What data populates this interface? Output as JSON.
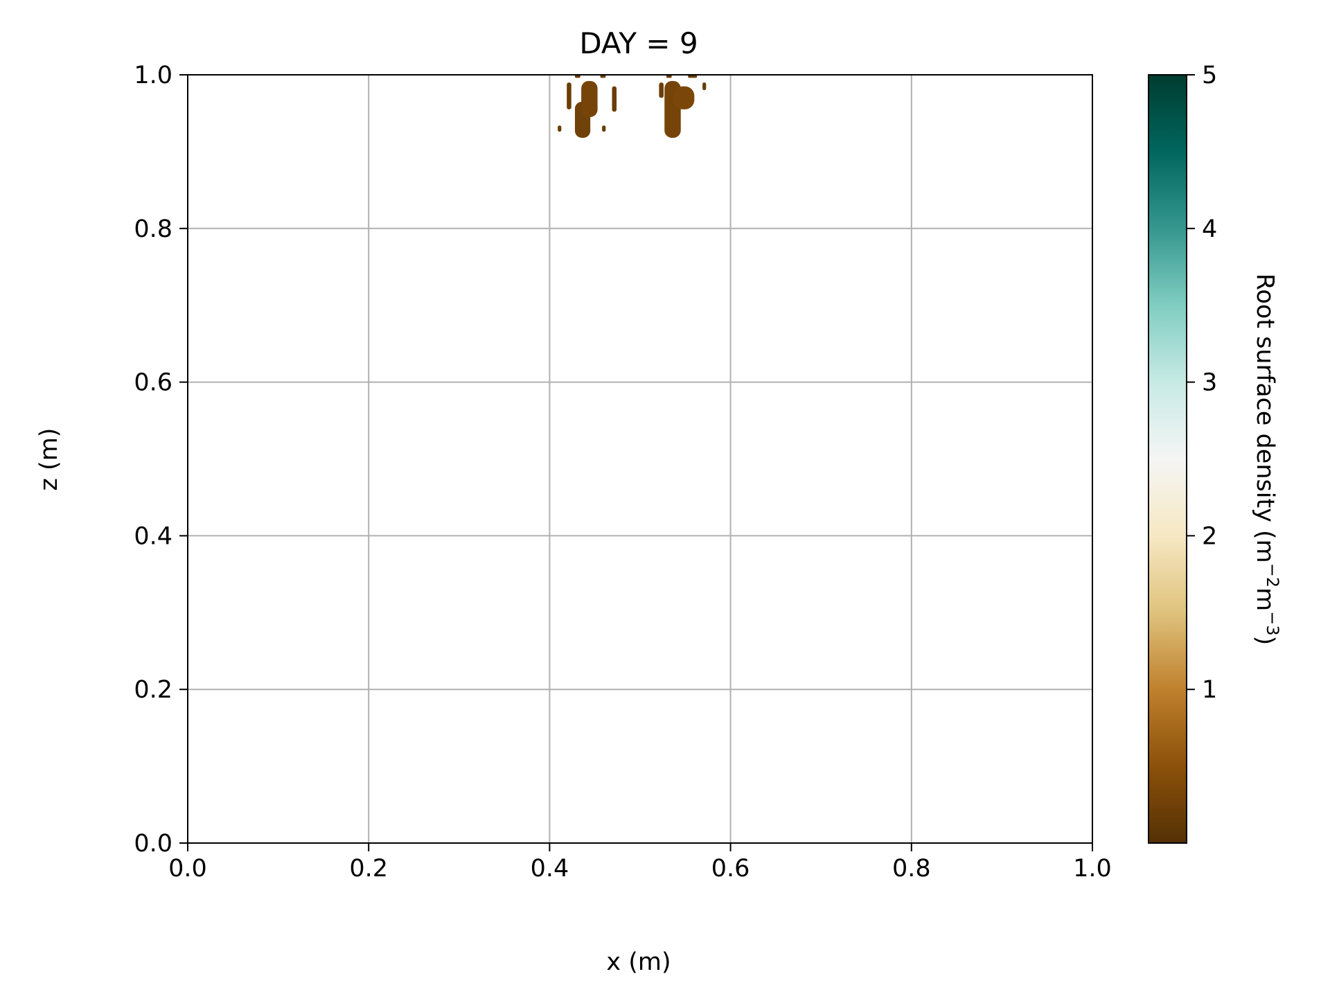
{
  "chart_data": {
    "type": "heatmap",
    "title": "DAY = 9",
    "xlabel": "x (m)",
    "ylabel": "z (m)",
    "xlim": [
      0.0,
      1.0
    ],
    "ylim": [
      0.0,
      1.0
    ],
    "x_ticks": [
      "0.0",
      "0.2",
      "0.4",
      "0.6",
      "0.8",
      "1.0"
    ],
    "y_ticks": [
      "0.0",
      "0.2",
      "0.4",
      "0.6",
      "0.8",
      "1.0"
    ],
    "grid": true,
    "colorbar": {
      "label_main": "Root surface density (m",
      "label_sup1": "−2",
      "label_mid": "m",
      "label_sup2": "−3",
      "label_end": ")",
      "range": [
        0,
        5
      ],
      "ticks": [
        "1",
        "2",
        "3",
        "4",
        "5"
      ],
      "colormap": "BrBG",
      "stops": [
        "#543005",
        "#8c510a",
        "#bf812d",
        "#dfc27d",
        "#f6e8c3",
        "#f5f5f5",
        "#c7eae5",
        "#80cdc1",
        "#35978f",
        "#01665e",
        "#003c30"
      ]
    },
    "regions": [
      {
        "x": [
          0.428,
          0.445
        ],
        "z": [
          0.918,
          0.965
        ],
        "value": 0.25
      },
      {
        "x": [
          0.435,
          0.453
        ],
        "z": [
          0.945,
          0.992
        ],
        "value": 0.3
      },
      {
        "x": [
          0.527,
          0.545
        ],
        "z": [
          0.918,
          0.992
        ],
        "value": 0.3
      },
      {
        "x": [
          0.537,
          0.56
        ],
        "z": [
          0.955,
          0.985
        ],
        "value": 0.35
      },
      {
        "x": [
          0.419,
          0.424
        ],
        "z": [
          0.955,
          0.99
        ],
        "value": 0.2
      },
      {
        "x": [
          0.469,
          0.474
        ],
        "z": [
          0.952,
          0.985
        ],
        "value": 0.2
      },
      {
        "x": [
          0.521,
          0.526
        ],
        "z": [
          0.97,
          0.99
        ],
        "value": 0.2
      },
      {
        "x": [
          0.569,
          0.573
        ],
        "z": [
          0.98,
          0.99
        ],
        "value": 0.2
      },
      {
        "x": [
          0.409,
          0.413
        ],
        "z": [
          0.926,
          0.934
        ],
        "value": 0.2
      },
      {
        "x": [
          0.458,
          0.462
        ],
        "z": [
          0.926,
          0.934
        ],
        "value": 0.2
      },
      {
        "x": [
          0.428,
          0.434
        ],
        "z": [
          0.996,
          1.0
        ],
        "value": 0.2
      },
      {
        "x": [
          0.456,
          0.462
        ],
        "z": [
          0.996,
          1.0
        ],
        "value": 0.2
      },
      {
        "x": [
          0.529,
          0.535
        ],
        "z": [
          0.996,
          1.0
        ],
        "value": 0.2
      },
      {
        "x": [
          0.553,
          0.563
        ],
        "z": [
          0.996,
          1.0
        ],
        "value": 0.2
      }
    ]
  }
}
